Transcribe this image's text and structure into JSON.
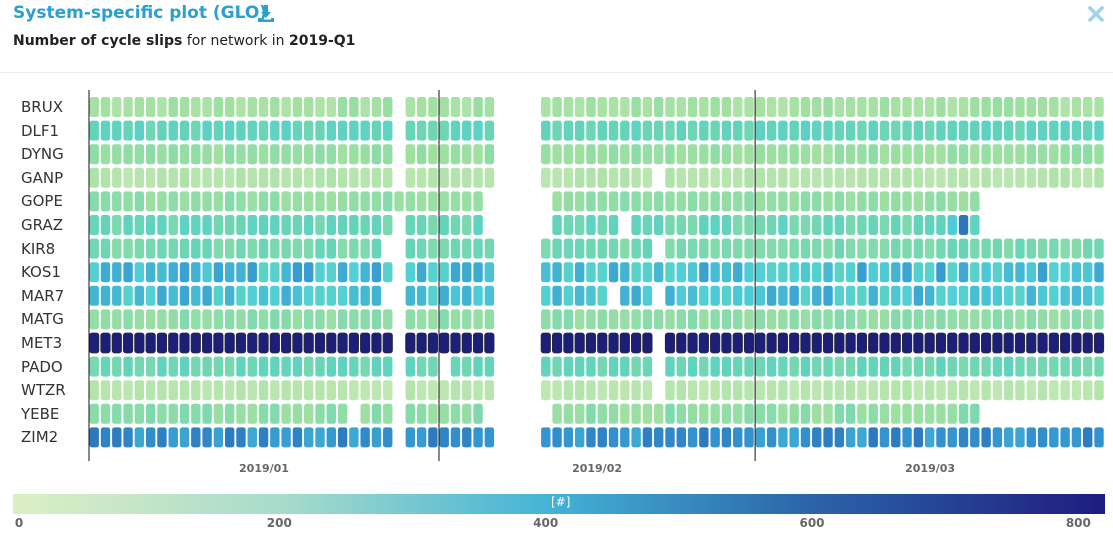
{
  "header": {
    "title": "System-specific plot (GLO)",
    "download_icon": "download-icon",
    "close_icon": "close-icon",
    "subtitle_bold1": "Number of cycle slips",
    "subtitle_mid": " for network in ",
    "subtitle_bold2": "2019-Q1"
  },
  "colors": {
    "title": "#2a9fd0",
    "close": "#9fd3ea"
  },
  "chart_data": {
    "type": "heatmap",
    "title": "Number of cycle slips for network in 2019-Q1",
    "x_start": "2019-01-01",
    "x_end": "2019-03-31",
    "days": 90,
    "month_labels": [
      "2019/01",
      "2019/02",
      "2019/03"
    ],
    "month_starts": [
      0,
      31,
      59
    ],
    "colorbar": {
      "label": "[#]",
      "range": [
        0,
        820
      ],
      "ticks": [
        0,
        200,
        400,
        600,
        800
      ],
      "palette": [
        "#e0f0c6",
        "#41b6d4",
        "#1d1f7a"
      ]
    },
    "stations": [
      {
        "name": "BRUX",
        "base": 110,
        "var": 25,
        "missing": [
          [
            27,
            27
          ],
          [
            36,
            39
          ]
        ]
      },
      {
        "name": "DLF1",
        "base": 235,
        "var": 35,
        "missing": [
          [
            27,
            27
          ],
          [
            36,
            39
          ]
        ]
      },
      {
        "name": "DYNG",
        "base": 135,
        "var": 20,
        "missing": [
          [
            27,
            27
          ],
          [
            36,
            39
          ]
        ]
      },
      {
        "name": "GANP",
        "base": 75,
        "var": 15,
        "missing": [
          [
            27,
            27
          ],
          [
            36,
            39
          ],
          [
            50,
            50
          ]
        ]
      },
      {
        "name": "GOPE",
        "base": 145,
        "var": 20,
        "missing": [
          [
            35,
            40
          ],
          [
            79,
            89
          ]
        ]
      },
      {
        "name": "GRAZ",
        "base": 220,
        "var": 40,
        "missing": [
          [
            27,
            27
          ],
          [
            35,
            40
          ],
          [
            47,
            47
          ],
          [
            79,
            89
          ]
        ],
        "spikes": {
          "77": 560,
          "76": 340
        }
      },
      {
        "name": "KIR8",
        "base": 190,
        "var": 30,
        "missing": [
          [
            26,
            27
          ],
          [
            36,
            39
          ],
          [
            50,
            50
          ]
        ]
      },
      {
        "name": "KOS1",
        "base": 360,
        "var": 80,
        "missing": [
          [
            27,
            27
          ],
          [
            36,
            39
          ]
        ]
      },
      {
        "name": "MAR7",
        "base": 350,
        "var": 70,
        "missing": [
          [
            26,
            27
          ],
          [
            36,
            39
          ],
          [
            46,
            46
          ],
          [
            50,
            50
          ]
        ]
      },
      {
        "name": "MATG",
        "base": 150,
        "var": 20,
        "missing": [
          [
            27,
            27
          ],
          [
            36,
            39
          ]
        ]
      },
      {
        "name": "MET3",
        "base": 800,
        "var": 5,
        "missing": [
          [
            27,
            27
          ],
          [
            36,
            39
          ],
          [
            50,
            50
          ]
        ]
      },
      {
        "name": "PADO",
        "base": 215,
        "var": 30,
        "missing": [
          [
            27,
            27
          ],
          [
            31,
            31
          ],
          [
            36,
            39
          ],
          [
            50,
            50
          ]
        ]
      },
      {
        "name": "WTZR",
        "base": 65,
        "var": 15,
        "missing": [
          [
            27,
            27
          ],
          [
            36,
            39
          ],
          [
            50,
            50
          ]
        ]
      },
      {
        "name": "YEBE",
        "base": 150,
        "var": 30,
        "missing": [
          [
            23,
            23
          ],
          [
            27,
            27
          ],
          [
            35,
            40
          ],
          [
            79,
            89
          ]
        ]
      },
      {
        "name": "ZIM2",
        "base": 480,
        "var": 70,
        "missing": [
          [
            27,
            27
          ],
          [
            36,
            39
          ]
        ]
      }
    ]
  }
}
